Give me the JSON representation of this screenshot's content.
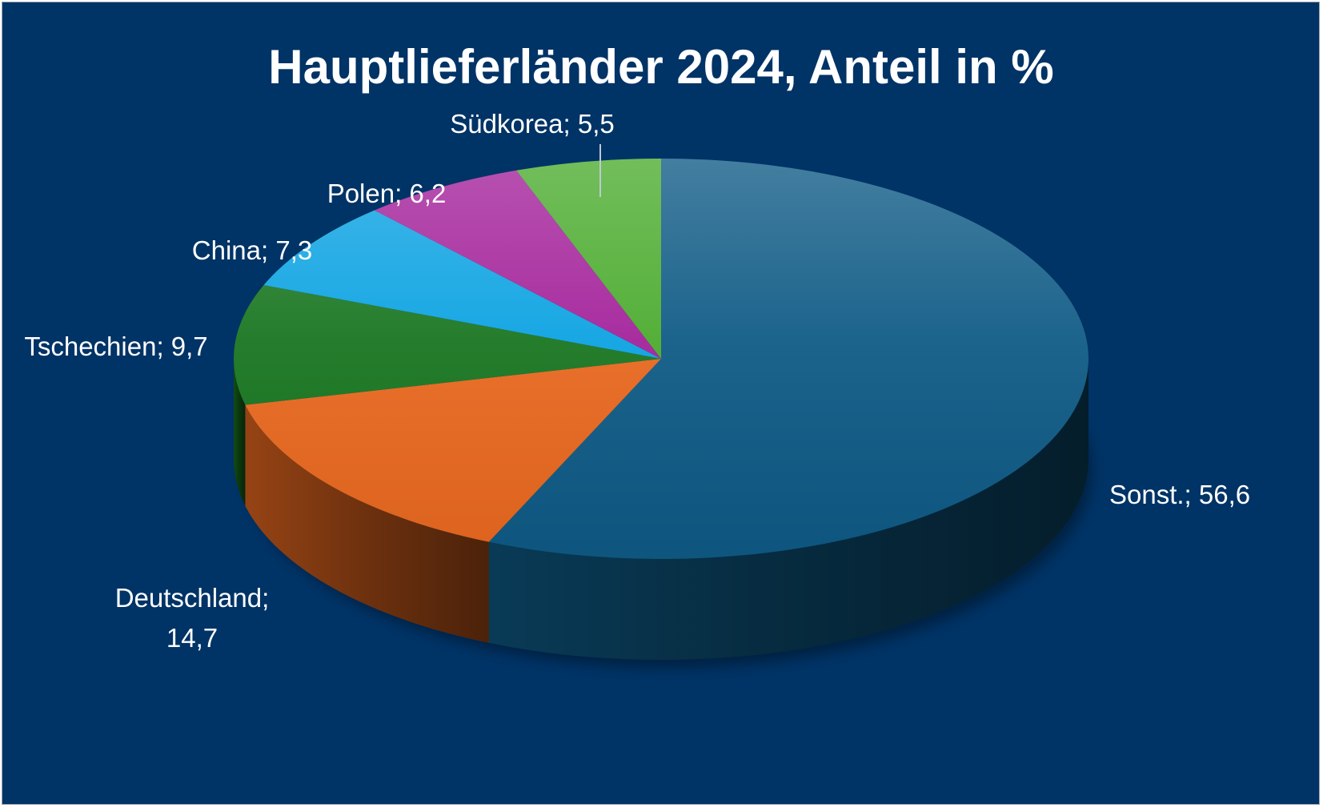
{
  "chart_data": {
    "type": "pie",
    "title": "Hauptlieferländer 2024, Anteil in %",
    "unit": "%",
    "slices": [
      {
        "label": "Sonst.",
        "value": 56.6,
        "display": "56,6",
        "color": "#0e5a85"
      },
      {
        "label": "Deutschland",
        "value": 14.7,
        "display": "14,7",
        "color": "#e8681f"
      },
      {
        "label": "Tschechien",
        "value": 9.7,
        "display": "9,7",
        "color": "#17751f"
      },
      {
        "label": "China",
        "value": 7.3,
        "display": "7,3",
        "color": "#0aa2e2"
      },
      {
        "label": "Polen",
        "value": 6.2,
        "display": "6,2",
        "color": "#a3219a"
      },
      {
        "label": "Südkorea",
        "value": 5.5,
        "display": "5,5",
        "color": "#4aab2d"
      }
    ],
    "style": "3d-pie",
    "background": "#003366",
    "legend": "none",
    "data_labels": "outside"
  }
}
